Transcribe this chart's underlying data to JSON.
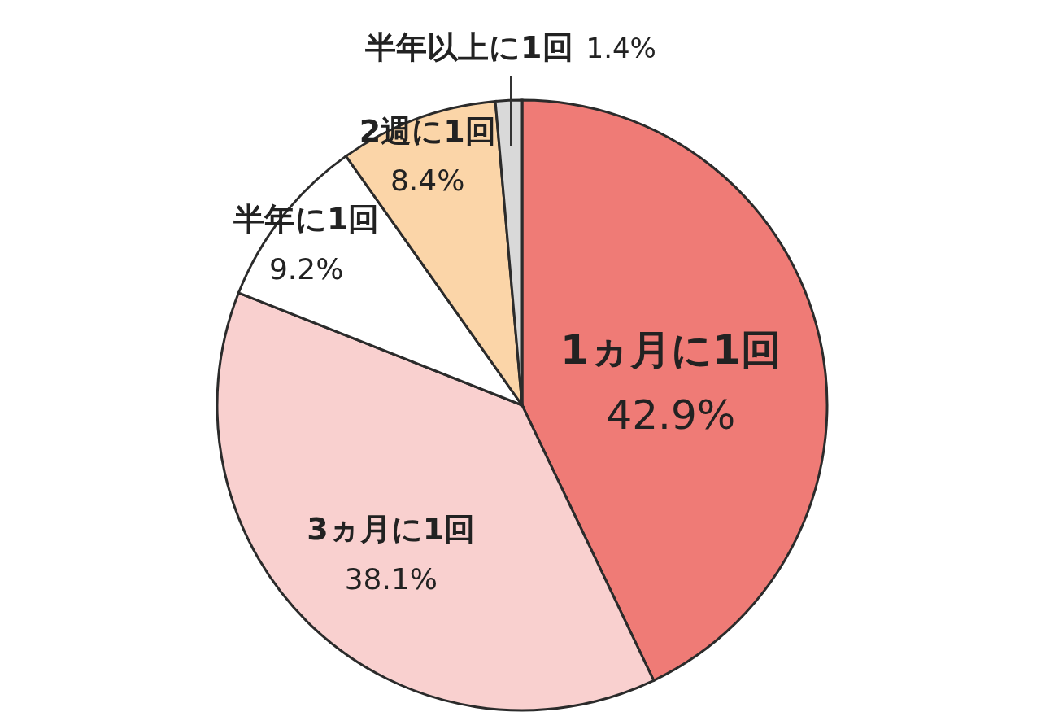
{
  "chart_data": {
    "type": "pie",
    "categories": [
      "1ヵ月に1回",
      "3ヵ月に1回",
      "半年に1回",
      "2週に1回",
      "半年以上に1回"
    ],
    "values": [
      42.9,
      38.1,
      9.2,
      8.4,
      1.4
    ],
    "value_labels": [
      "42.9%",
      "38.1%",
      "9.2%",
      "8.4%",
      "1.4%"
    ],
    "colors": [
      "#ef7b76",
      "#f9d0cf",
      "#ffffff",
      "#fbd5a8",
      "#d9d9d9"
    ],
    "legend": false
  }
}
